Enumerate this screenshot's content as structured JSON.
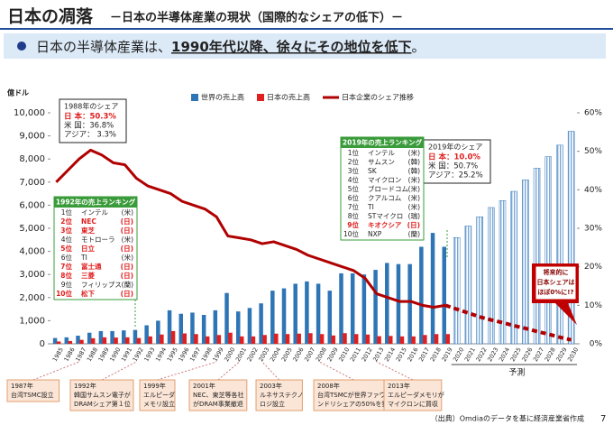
{
  "chart_data": {
    "type": "bar",
    "title": "日本の凋落",
    "subtitle": "－日本の半導体産業の現状（国際的なシェアの低下）－",
    "headline": [
      "日本の半導体産業は、",
      "1990年代以降、徐々にその地位を低下",
      "。"
    ],
    "y_unit_label": "億ドル",
    "categories": [
      "1985",
      "1986",
      "1987",
      "1988",
      "1989",
      "1990",
      "1991",
      "1992",
      "1993",
      "1994",
      "1995",
      "1996",
      "1997",
      "1998",
      "1999",
      "2000",
      "2001",
      "2002",
      "2003",
      "2004",
      "2005",
      "2006",
      "2007",
      "2008",
      "2009",
      "2010",
      "2011",
      "2012",
      "2013",
      "2014",
      "2015",
      "2016",
      "2017",
      "2018",
      "2019",
      "2020",
      "2021",
      "2022",
      "2023",
      "2024",
      "2025",
      "2026",
      "2027",
      "2028",
      "2029",
      "2030"
    ],
    "series": [
      {
        "name": "世界の売上高",
        "color": "#2e75b6",
        "values": [
          250,
          280,
          350,
          480,
          550,
          550,
          580,
          600,
          800,
          1000,
          1450,
          1300,
          1350,
          1250,
          1450,
          2200,
          1400,
          1550,
          1750,
          2300,
          2400,
          2600,
          2700,
          2600,
          2300,
          3050,
          3050,
          3000,
          3200,
          3500,
          3450,
          3450,
          4200,
          4800,
          4200,
          null,
          null,
          null,
          null,
          null,
          null,
          null,
          null,
          null,
          null,
          null
        ]
      },
      {
        "name": "日本の売上高",
        "color": "#e02020",
        "values": [
          100,
          120,
          170,
          240,
          280,
          270,
          280,
          250,
          320,
          400,
          550,
          450,
          420,
          320,
          380,
          480,
          320,
          320,
          380,
          440,
          420,
          440,
          460,
          420,
          360,
          460,
          420,
          400,
          330,
          340,
          320,
          320,
          380,
          420,
          420,
          null,
          null,
          null,
          null,
          null,
          null,
          null,
          null,
          null,
          null,
          null
        ]
      },
      {
        "name": "日本企業のシェア推移",
        "type": "line",
        "axis": "y2",
        "color": "#b00000",
        "values": [
          42,
          45,
          48,
          50.3,
          49,
          47,
          46.5,
          43,
          41,
          40,
          39,
          37,
          36,
          35,
          33,
          28,
          27.5,
          27,
          26,
          26.5,
          25.5,
          24.5,
          23,
          22,
          21,
          20,
          19,
          17,
          13,
          12,
          11,
          11,
          10,
          9.5,
          10,
          null,
          null,
          null,
          null,
          null,
          null,
          null,
          null,
          null,
          null,
          null
        ]
      },
      {
        "color": "#2e75b6",
        "style": "hatched",
        "values": [
          null,
          null,
          null,
          null,
          null,
          null,
          null,
          null,
          null,
          null,
          null,
          null,
          null,
          null,
          null,
          null,
          null,
          null,
          null,
          null,
          null,
          null,
          null,
          null,
          null,
          null,
          null,
          null,
          null,
          null,
          null,
          null,
          null,
          null,
          null,
          4600,
          5100,
          5500,
          5900,
          6200,
          6600,
          7100,
          7600,
          8100,
          8600,
          9200
        ]
      },
      {
        "type": "line",
        "axis": "y2",
        "color": "#b00000",
        "style": "dashed",
        "values": [
          null,
          null,
          null,
          null,
          null,
          null,
          null,
          null,
          null,
          null,
          null,
          null,
          null,
          null,
          null,
          null,
          null,
          null,
          null,
          null,
          null,
          null,
          null,
          null,
          null,
          null,
          null,
          null,
          null,
          null,
          null,
          null,
          null,
          null,
          10,
          9,
          8,
          7,
          6.2,
          5.5,
          4.7,
          4,
          3.2,
          2.5,
          1.7,
          1
        ]
      }
    ],
    "ylim": [
      0,
      10000
    ],
    "yticks": [
      0,
      {
        "value": 1000,
        "label": "1,000"
      },
      {
        "value": 2000,
        "label": "2,000"
      },
      {
        "value": 3000,
        "label": "3,000"
      },
      {
        "value": 4000,
        "label": "4,000"
      },
      {
        "value": 5000,
        "label": "5,000"
      },
      {
        "value": 6000,
        "label": "6,000"
      },
      {
        "value": 7000,
        "label": "7,000"
      },
      {
        "value": 8000,
        "label": "8,000"
      },
      {
        "value": 9000,
        "label": "9,000"
      },
      {
        "value": 10000,
        "label": "10,000"
      }
    ],
    "y2lim": [
      0,
      60
    ],
    "y2ticks": [
      {
        "value": 0,
        "label": "0%"
      },
      {
        "value": 10,
        "label": "10%"
      },
      {
        "value": 20,
        "label": "20%"
      },
      {
        "value": 30,
        "label": "30%"
      },
      {
        "value": 40,
        "label": "40%"
      },
      {
        "value": 50,
        "label": "50%"
      },
      {
        "value": 60,
        "label": "60%"
      }
    ],
    "legend": "top",
    "forecast_label": "予測",
    "highlight_color": "#e02020",
    "share_boxes": [
      {
        "title": "1988年のシェア",
        "lines": [
          {
            "text": "日 本：50.3%",
            "highlight": true
          },
          {
            "text": "米 国：36.8%"
          },
          {
            "text": "アジア：  3.3%"
          }
        ]
      },
      {
        "title": "2019年のシェア",
        "lines": [
          {
            "text": "日 本：10.0%",
            "highlight": true
          },
          {
            "text": "米 国：50.7%"
          },
          {
            "text": "アジア：25.2%"
          }
        ]
      }
    ],
    "rankings": [
      {
        "title": "1992年の売上ランキング",
        "rows": [
          {
            "cells": [
              "1位",
              "インテル",
              "(米)"
            ]
          },
          {
            "cells": [
              "2位",
              "NEC",
              "(日)"
            ],
            "highlight": true
          },
          {
            "cells": [
              "3位",
              "東芝",
              "(日)"
            ],
            "highlight": true
          },
          {
            "cells": [
              "4位",
              "モトローラ",
              "(米)"
            ]
          },
          {
            "cells": [
              "5位",
              "日立",
              "(日)"
            ],
            "highlight": true
          },
          {
            "cells": [
              "6位",
              "TI",
              "(米)"
            ]
          },
          {
            "cells": [
              "7位",
              "富士通",
              "(日)"
            ],
            "highlight": true
          },
          {
            "cells": [
              "8位",
              "三菱",
              "(日)"
            ],
            "highlight": true
          },
          {
            "cells": [
              "9位",
              "フィリップス",
              "(蘭)"
            ]
          },
          {
            "cells": [
              "10位",
              "松下",
              "(日)"
            ],
            "highlight": true
          }
        ]
      },
      {
        "title": "2019年の売上ランキング",
        "rows": [
          {
            "cells": [
              "1位",
              "インテル",
              "(米)"
            ]
          },
          {
            "cells": [
              "2位",
              "サムスン",
              "(韓)"
            ]
          },
          {
            "cells": [
              "3位",
              "SK",
              "(韓)"
            ]
          },
          {
            "cells": [
              "4位",
              "マイクロン",
              "(米)"
            ]
          },
          {
            "cells": [
              "5位",
              "ブロードコム",
              "(米)"
            ]
          },
          {
            "cells": [
              "6位",
              "クアルコム",
              "(米)"
            ]
          },
          {
            "cells": [
              "7位",
              "TI",
              "(米)"
            ]
          },
          {
            "cells": [
              "8位",
              "STマイクロ",
              "(瑞)"
            ]
          },
          {
            "cells": [
              "9位",
              "キオクシア",
              "(日)"
            ],
            "highlight": true
          },
          {
            "cells": [
              "10位",
              "NXP",
              "(蘭)"
            ]
          }
        ]
      }
    ],
    "callout": [
      "将来的に",
      "日本シェアは",
      "ほぼ0%に!?"
    ],
    "events": [
      [
        "1987年",
        "台湾TSMC設立"
      ],
      [
        "1992年",
        "韓国サムスン電子が",
        "DRAMシェア第１位"
      ],
      [
        "1999年",
        "エルピーダ",
        "メモリ設立"
      ],
      [
        "2001年",
        "NEC、東芝等各社",
        "がDRAM事業撤退"
      ],
      [
        "2003年",
        "ルネサステクノ",
        "ロジ設立"
      ],
      [
        "2008年",
        "台湾TSMCが世界ファウ",
        "ンドリシェアの50%を獲得"
      ],
      [
        "2013年",
        "エルピーダメモリが",
        "マイクロンに買収"
      ]
    ],
    "source": "（出典）Omdiaのデータを基に経済産業省作成",
    "page_number": "7"
  }
}
